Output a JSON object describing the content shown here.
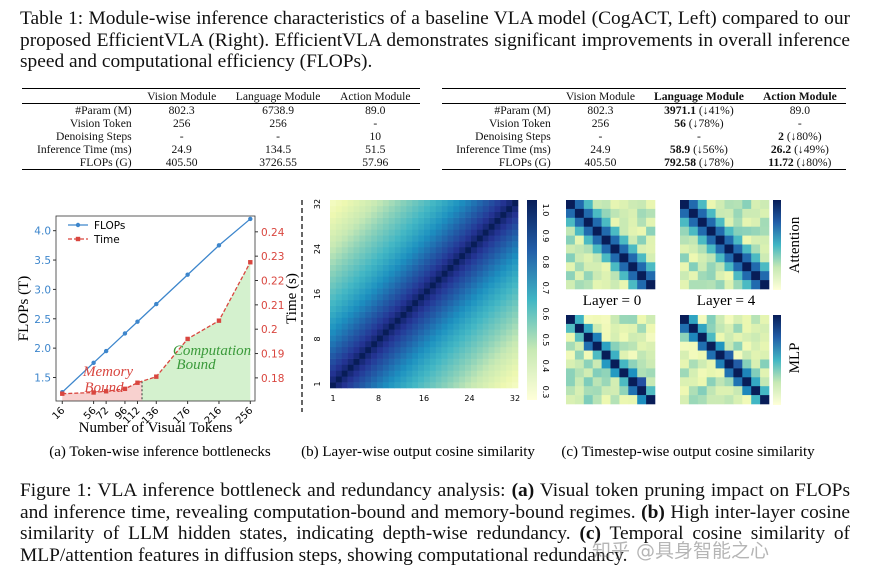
{
  "table_caption": {
    "label": "Table 1:",
    "text": "Module-wise inference characteristics of a baseline VLA model (CogACT, Left) compared to our proposed EfficientVLA (Right). EfficientVLA demonstrates significant improvements in overall inference speed and computational efficiency (FLOPs)."
  },
  "tables": [
    {
      "columns": [
        "Vision Module",
        "Language Module",
        "Action Module"
      ],
      "bold_header": [
        false,
        false,
        false
      ],
      "rows": [
        {
          "label": "#Param (M)",
          "cells": [
            "802.3",
            "6738.9",
            "89.0"
          ]
        },
        {
          "label": "Vision Token",
          "cells": [
            "256",
            "256",
            "-"
          ]
        },
        {
          "label": "Denoising Steps",
          "cells": [
            "-",
            "-",
            "10"
          ]
        },
        {
          "label": "Inference Time (ms)",
          "cells": [
            "24.9",
            "134.5",
            "51.5"
          ]
        },
        {
          "label": "FLOPs (G)",
          "cells": [
            "405.50",
            "3726.55",
            "57.96"
          ]
        }
      ]
    },
    {
      "columns": [
        "Vision Module",
        "Language Module",
        "Action Module"
      ],
      "bold_header": [
        false,
        true,
        true
      ],
      "rows": [
        {
          "label": "#Param (M)",
          "cells": [
            "802.3",
            {
              "value": "3971.1",
              "note": "(↓41%)"
            },
            "89.0"
          ]
        },
        {
          "label": "Vision Token",
          "cells": [
            "256",
            {
              "value": "56",
              "note": "(↓78%)"
            },
            "-"
          ]
        },
        {
          "label": "Denoising Steps",
          "cells": [
            "-",
            "-",
            {
              "value": "2",
              "note": "(↓80%)"
            }
          ]
        },
        {
          "label": "Inference Time (ms)",
          "cells": [
            "24.9",
            {
              "value": "58.9",
              "note": "(↓56%)"
            },
            {
              "value": "26.2",
              "note": "(↓49%)"
            }
          ]
        },
        {
          "label": "FLOPs (G)",
          "cells": [
            "405.50",
            {
              "value": "792.58",
              "note": "(↓78%)"
            },
            {
              "value": "11.72",
              "note": "(↓80%)"
            }
          ]
        }
      ]
    }
  ],
  "figure": {
    "panel_a": {
      "type": "line",
      "x": [
        16,
        56,
        72,
        96,
        112,
        136,
        176,
        216,
        256
      ],
      "xticks": [
        16,
        56,
        72,
        96,
        112,
        136,
        176,
        216,
        256
      ],
      "xlim": [
        8,
        262
      ],
      "xlabel": "Number of Visual Tokens",
      "ylabel": "FLOPs (T)",
      "y2label": "Time (s)",
      "ylim": [
        1.1,
        4.25
      ],
      "yticks": [
        1.5,
        {
          "value": 2,
          "label": "2.0"
        },
        2.5,
        {
          "value": 3,
          "label": "3.0"
        },
        3.5,
        {
          "value": 4,
          "label": "4.0"
        }
      ],
      "y2lim": [
        0.1705,
        0.2465
      ],
      "y2ticks": [
        0.18,
        0.19,
        0.2,
        0.21,
        0.22,
        0.23,
        0.24
      ],
      "series": [
        {
          "name": "FLOPs",
          "color": "#3d86cc",
          "values": [
            1.25,
            1.75,
            1.95,
            2.25,
            2.45,
            2.75,
            3.25,
            3.75,
            4.2
          ]
        },
        {
          "name": "Time",
          "color": "#d9463f",
          "axis": "y2",
          "dashed": true,
          "values": [
            0.1735,
            0.174,
            0.1745,
            0.1755,
            0.178,
            0.1805,
            0.196,
            0.2035,
            0.2275
          ]
        }
      ],
      "annotations": [
        {
          "lines": [
            "Memory",
            "Bound"
          ],
          "color": "#d9463f"
        },
        {
          "lines": [
            "Computation",
            "Bound"
          ],
          "color": "#3a9a3a"
        }
      ]
    },
    "panel_b": {
      "xticks": [
        "1",
        "8",
        "16",
        "24",
        "32"
      ],
      "yticks": [
        "32",
        "24",
        "16",
        "8",
        "1"
      ],
      "colorbar_ticks": [
        "1.0",
        "0.9",
        "0.8",
        "0.7",
        "0.6",
        "0.5",
        "0.4",
        "0.3"
      ]
    },
    "panel_c": {
      "layers": [
        "Layer = 0",
        "Layer = 4"
      ],
      "rows": [
        "Attention",
        "MLP"
      ]
    },
    "subcaptions": [
      "(a) Token-wise inference bottlenecks",
      "(b) Layer-wise output cosine similarity",
      "(c) Timestep-wise output cosine similarity"
    ]
  },
  "figure_caption": {
    "label": "Figure 1:",
    "segments": [
      {
        "text": "VLA inference bottleneck and redundancy analysis:",
        "bold": false
      },
      {
        "text": "(a)",
        "bold": true
      },
      {
        "text": "Visual token pruning impact on FLOPs and inference time, revealing computation-bound and memory-bound regimes.",
        "bold": false
      },
      {
        "text": "(b)",
        "bold": true
      },
      {
        "text": "High inter-layer cosine similarity of LLM hidden states, indicating depth-wise redundancy.",
        "bold": false
      },
      {
        "text": "(c)",
        "bold": true
      },
      {
        "text": "Temporal cosine similarity of MLP/attention features in diffusion steps, showing computational redundancy.",
        "bold": false
      }
    ]
  },
  "watermark": "知乎 @具身智能之心"
}
